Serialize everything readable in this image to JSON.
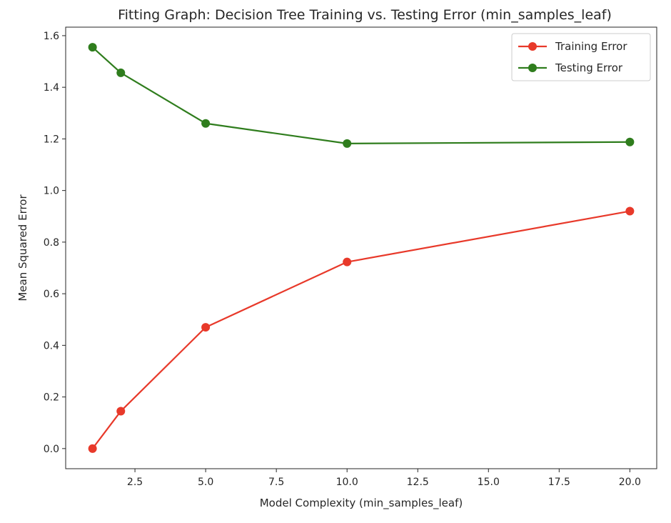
{
  "chart_data": {
    "type": "line",
    "title": "Fitting Graph: Decision Tree Training vs. Testing Error (min_samples_leaf)",
    "xlabel": "Model Complexity (min_samples_leaf)",
    "ylabel": "Mean Squared Error",
    "xlim": [
      0.05,
      20.95
    ],
    "ylim": [
      -0.078,
      1.633
    ],
    "xticks": [
      2.5,
      5.0,
      7.5,
      10.0,
      12.5,
      15.0,
      17.5,
      20.0
    ],
    "xtick_labels": [
      "2.5",
      "5.0",
      "7.5",
      "10.0",
      "12.5",
      "15.0",
      "17.5",
      "20.0"
    ],
    "yticks": [
      0.0,
      0.2,
      0.4,
      0.6,
      0.8,
      1.0,
      1.2,
      1.4,
      1.6
    ],
    "ytick_labels": [
      "0.0",
      "0.2",
      "0.4",
      "0.6",
      "0.8",
      "1.0",
      "1.2",
      "1.4",
      "1.6"
    ],
    "grid": false,
    "legend_position": "top-right",
    "x": [
      1,
      2,
      5,
      10,
      20
    ],
    "series": [
      {
        "name": "Training Error",
        "color": "#e8392a",
        "values": [
          0.0,
          0.145,
          0.47,
          0.723,
          0.92
        ]
      },
      {
        "name": "Testing Error",
        "color": "#2f7d1d",
        "values": [
          1.555,
          1.456,
          1.26,
          1.182,
          1.188
        ]
      }
    ]
  }
}
